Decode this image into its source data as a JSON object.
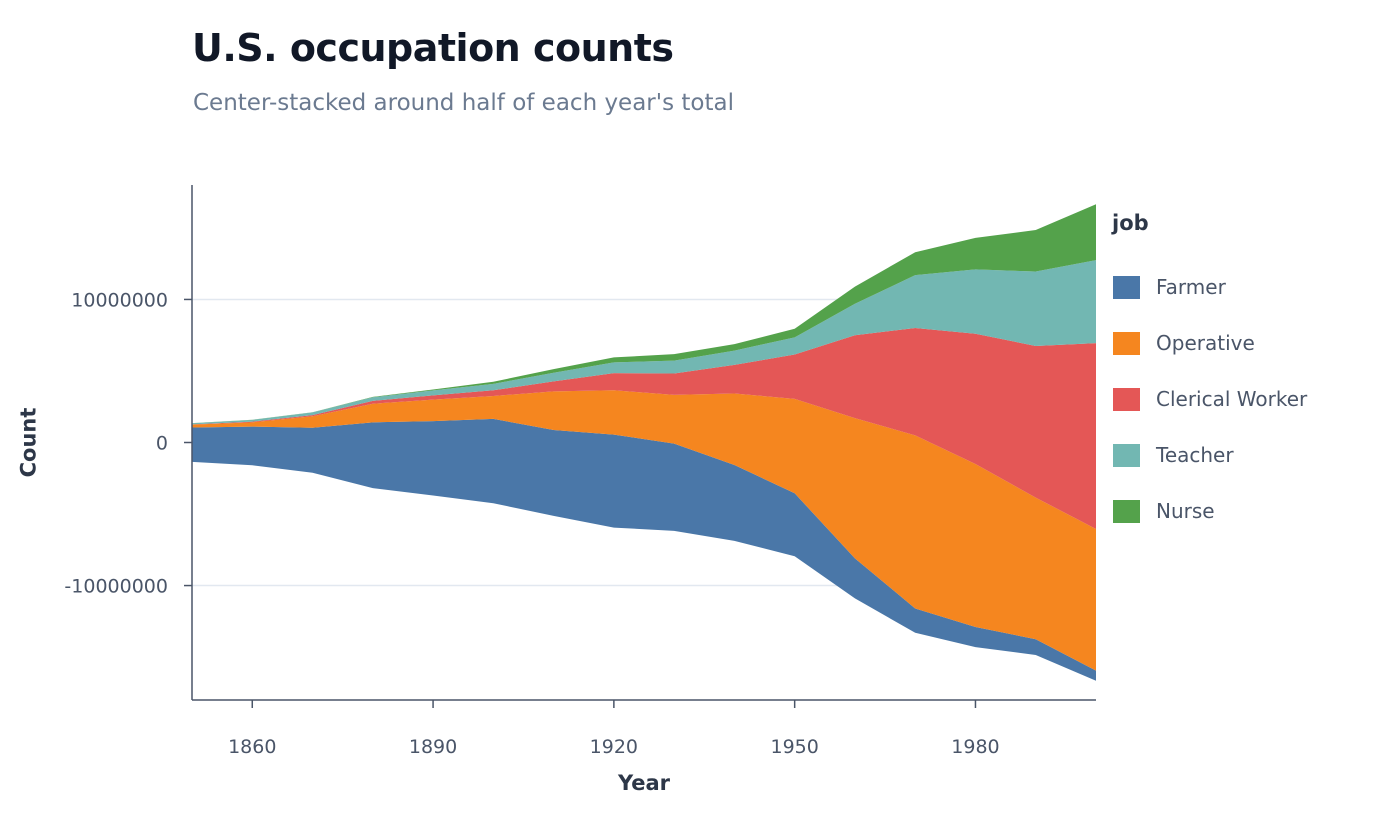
{
  "chart_data": {
    "type": "area",
    "title": "U.S. occupation counts",
    "subtitle": "Center-stacked around half of each year's total",
    "xlabel": "Year",
    "ylabel": "Count",
    "x": [
      1850,
      1860,
      1870,
      1880,
      1890,
      1900,
      1910,
      1920,
      1930,
      1940,
      1950,
      1960,
      1970,
      1980,
      1990,
      2000
    ],
    "xlim": [
      1850,
      2000
    ],
    "ylim": [
      -18000000,
      18000000
    ],
    "x_ticks": [
      1860,
      1890,
      1920,
      1950,
      1980
    ],
    "x_tick_labels": [
      "1860",
      "1890",
      "1920",
      "1950",
      "1980"
    ],
    "y_ticks": [
      -10000000,
      0,
      10000000
    ],
    "y_tick_labels": [
      "-10000000",
      "0",
      "10000000"
    ],
    "grid": "horizontal",
    "legend": {
      "title": "job",
      "position": "right"
    },
    "series": [
      {
        "name": "Farmer",
        "color": "#4a77a8",
        "values": [
          2400000,
          2700000,
          3150000,
          4600000,
          5200000,
          5900000,
          6000000,
          6500000,
          6100000,
          5300000,
          4400000,
          2800000,
          1700000,
          1400000,
          1100000,
          700000
        ]
      },
      {
        "name": "Operative",
        "color": "#f5861f",
        "values": [
          200000,
          300000,
          800000,
          1300000,
          1500000,
          1600000,
          2700000,
          3100000,
          3400000,
          5000000,
          6600000,
          9800000,
          12100000,
          11400000,
          9900000,
          9900000
        ]
      },
      {
        "name": "Clerical Worker",
        "color": "#e45756",
        "values": [
          20000,
          50000,
          80000,
          200000,
          300000,
          400000,
          700000,
          1200000,
          1500000,
          2000000,
          3100000,
          5800000,
          7500000,
          9100000,
          10600000,
          13000000
        ]
      },
      {
        "name": "Teacher",
        "color": "#72b7b2",
        "values": [
          80000,
          120000,
          190000,
          250000,
          350000,
          450000,
          600000,
          750000,
          900000,
          1000000,
          1200000,
          2200000,
          3700000,
          4500000,
          5200000,
          5800000
        ]
      },
      {
        "name": "Nurse",
        "color": "#54a24b",
        "values": [
          5000,
          10000,
          15000,
          30000,
          60000,
          150000,
          250000,
          350000,
          450000,
          450000,
          600000,
          1200000,
          1600000,
          2200000,
          2900000,
          3900000
        ]
      }
    ]
  }
}
